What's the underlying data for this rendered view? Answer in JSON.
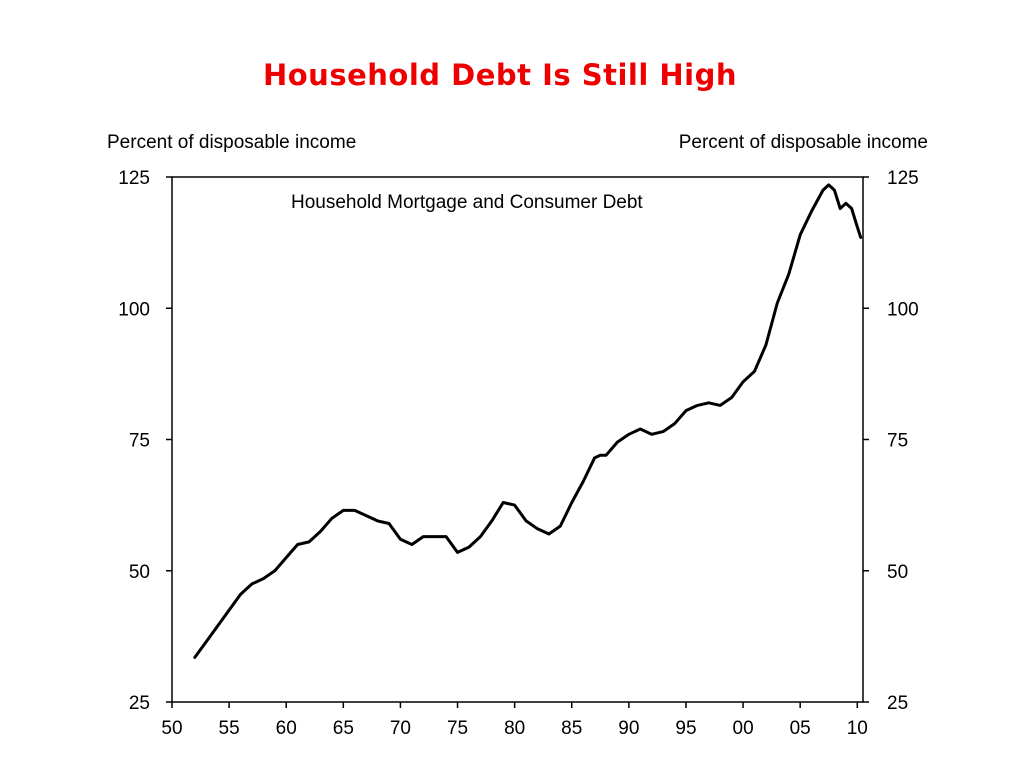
{
  "slide": {
    "title": "Household Debt Is Still High"
  },
  "chart_data": {
    "type": "line",
    "title": "Household Debt Is Still High",
    "ylabel_left": "Percent of disposable income",
    "ylabel_right": "Percent of disposable income",
    "xlabel": "",
    "xlim": [
      1950,
      2010.5
    ],
    "ylim": [
      25,
      125
    ],
    "x_ticks": [
      1950,
      1955,
      1960,
      1965,
      1970,
      1975,
      1980,
      1985,
      1990,
      1995,
      2000,
      2005,
      2010
    ],
    "x_tick_labels": [
      "50",
      "55",
      "60",
      "65",
      "70",
      "75",
      "80",
      "85",
      "90",
      "95",
      "00",
      "05",
      "10"
    ],
    "y_ticks": [
      25,
      50,
      75,
      100,
      125
    ],
    "y_tick_labels": [
      "25",
      "50",
      "75",
      "100",
      "125"
    ],
    "grid": false,
    "legend": "none",
    "series": [
      {
        "name": "Household Mortgage and Consumer Debt",
        "color": "#000000",
        "x": [
          1952.0,
          1953.0,
          1954.0,
          1955.0,
          1956.0,
          1957.0,
          1958.0,
          1959.0,
          1960.0,
          1961.0,
          1962.0,
          1963.0,
          1964.0,
          1965.0,
          1966.0,
          1967.0,
          1968.0,
          1969.0,
          1970.0,
          1971.0,
          1972.0,
          1973.0,
          1974.0,
          1975.0,
          1976.0,
          1977.0,
          1978.0,
          1979.0,
          1980.0,
          1981.0,
          1982.0,
          1983.0,
          1984.0,
          1985.0,
          1986.0,
          1987.0,
          1987.5,
          1988.0,
          1989.0,
          1990.0,
          1991.0,
          1992.0,
          1993.0,
          1994.0,
          1995.0,
          1996.0,
          1997.0,
          1998.0,
          1999.0,
          2000.0,
          2001.0,
          2002.0,
          2003.0,
          2004.0,
          2005.0,
          2006.0,
          2007.0,
          2007.5,
          2008.0,
          2008.5,
          2009.0,
          2009.5,
          2010.0,
          2010.3
        ],
        "y": [
          33.5,
          36.5,
          39.5,
          42.5,
          45.5,
          47.5,
          48.5,
          50.0,
          52.5,
          55.0,
          55.5,
          57.5,
          60.0,
          61.5,
          61.5,
          60.5,
          59.5,
          59.0,
          56.0,
          55.0,
          56.5,
          56.5,
          56.5,
          53.5,
          54.5,
          56.5,
          59.5,
          63.0,
          62.5,
          59.5,
          58.0,
          57.0,
          58.5,
          63.0,
          67.0,
          71.5,
          72.0,
          72.0,
          74.5,
          76.0,
          77.0,
          76.0,
          76.5,
          78.0,
          80.5,
          81.5,
          82.0,
          81.5,
          83.0,
          86.0,
          88.0,
          93.0,
          101.0,
          106.5,
          114.0,
          118.5,
          122.5,
          123.5,
          122.5,
          119.0,
          120.0,
          119.0,
          115.5,
          113.5
        ]
      }
    ]
  }
}
